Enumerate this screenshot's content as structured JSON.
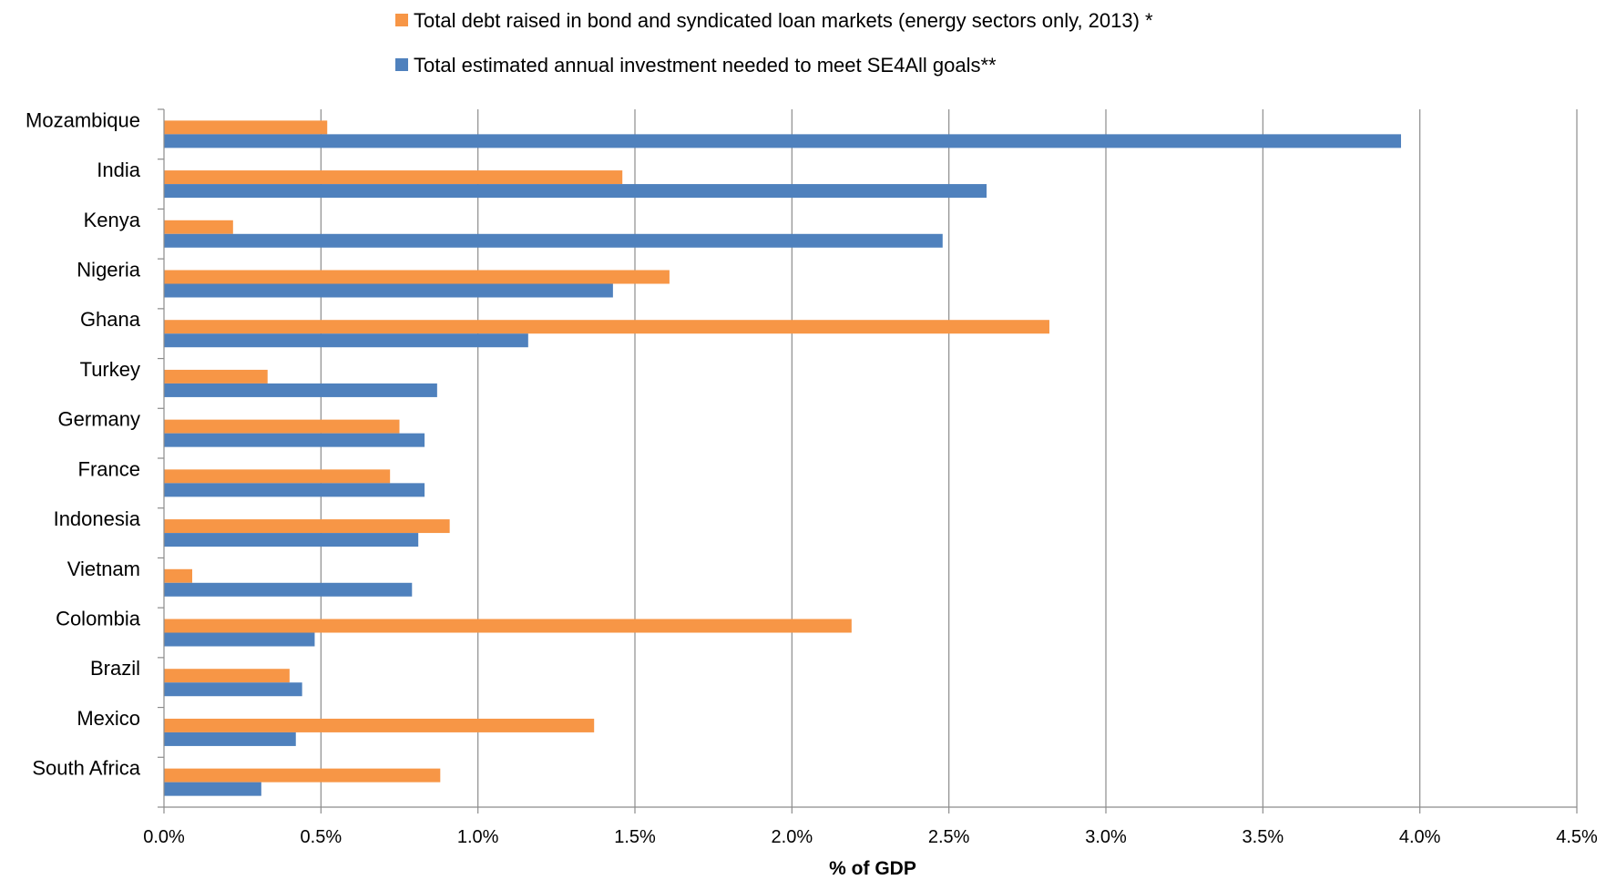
{
  "chart_data": {
    "type": "bar",
    "orientation": "horizontal",
    "categories": [
      "Mozambique",
      "India",
      "Kenya",
      "Nigeria",
      "Ghana",
      "Turkey",
      "Germany",
      "France",
      "Indonesia",
      "Vietnam",
      "Colombia",
      "Brazil",
      "Mexico",
      "South Africa"
    ],
    "series": [
      {
        "name": "Total debt raised in bond and syndicated loan markets (energy sectors only, 2013) *",
        "color": "#F79646",
        "values": [
          0.52,
          1.46,
          0.22,
          1.61,
          2.82,
          0.33,
          0.75,
          0.72,
          0.91,
          0.09,
          2.19,
          0.4,
          1.37,
          0.88
        ]
      },
      {
        "name": "Total estimated annual investment needed to meet SE4All goals**",
        "color": "#4F81BD",
        "values": [
          3.94,
          2.62,
          2.48,
          1.43,
          1.16,
          0.87,
          0.83,
          0.83,
          0.81,
          0.79,
          0.48,
          0.44,
          0.42,
          0.31
        ]
      }
    ],
    "xlim": [
      0,
      4.5
    ],
    "x_ticks": [
      "0.0%",
      "0.5%",
      "1.0%",
      "1.5%",
      "2.0%",
      "2.5%",
      "3.0%",
      "3.5%",
      "4.0%",
      "4.5%"
    ],
    "xlabel": "% of GDP",
    "ylabel": "",
    "title": "",
    "grid": "vertical",
    "legend_position": "top"
  }
}
